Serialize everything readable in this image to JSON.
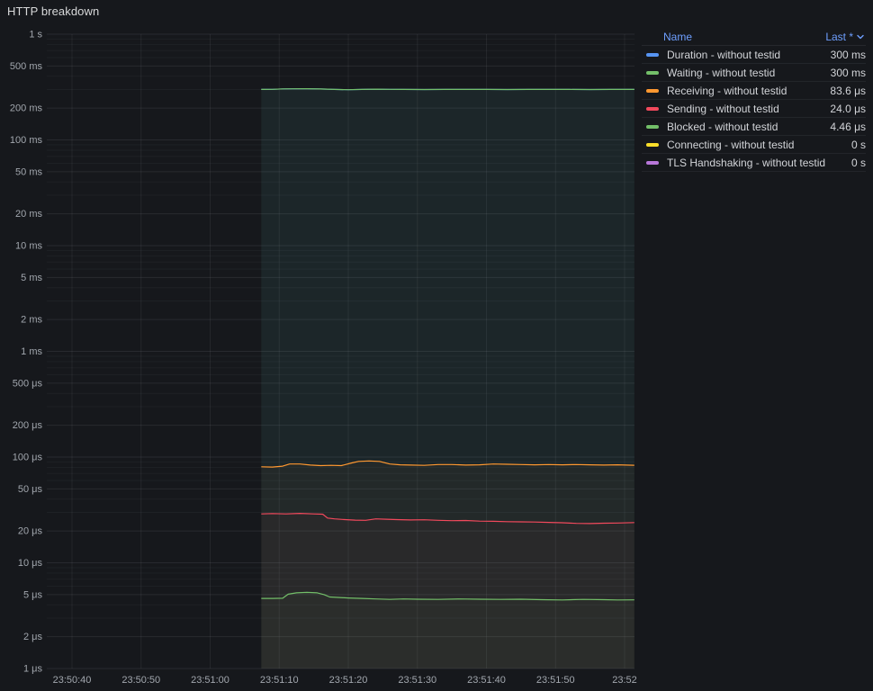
{
  "panel": {
    "title": "HTTP breakdown"
  },
  "legend": {
    "name_header": "Name",
    "last_header": "Last *",
    "sort_icon": "chevron-down",
    "rows": [
      {
        "name": "Duration - without testid",
        "last": "300 ms",
        "color": "#5794F2"
      },
      {
        "name": "Waiting - without testid",
        "last": "300 ms",
        "color": "#73BF69"
      },
      {
        "name": "Receiving - without testid",
        "last": "83.6 μs",
        "color": "#FF9830"
      },
      {
        "name": "Sending - without testid",
        "last": "24.0 μs",
        "color": "#F2495C"
      },
      {
        "name": "Blocked - without testid",
        "last": "4.46 μs",
        "color": "#73BF69"
      },
      {
        "name": "Connecting - without testid",
        "last": "0 s",
        "color": "#FADE2A"
      },
      {
        "name": "TLS Handshaking - without testid",
        "last": "0 s",
        "color": "#B877D9"
      }
    ]
  },
  "chart_data": {
    "type": "line",
    "title": "HTTP breakdown",
    "xlabel": "",
    "ylabel": "",
    "y_scale": "log",
    "y_unit": "time (1 μs – 1 s)",
    "y_range_us": [
      1,
      1000000
    ],
    "x_range_seconds_after_23_50_00": [
      36.35,
      121.43
    ],
    "grid": true,
    "legend_position": "right-table",
    "y_ticks": [
      {
        "label": "1 s",
        "us": 1000000
      },
      {
        "label": "500 ms",
        "us": 500000
      },
      {
        "label": "200 ms",
        "us": 200000
      },
      {
        "label": "100 ms",
        "us": 100000
      },
      {
        "label": "50 ms",
        "us": 50000
      },
      {
        "label": "20 ms",
        "us": 20000
      },
      {
        "label": "10 ms",
        "us": 10000
      },
      {
        "label": "5 ms",
        "us": 5000
      },
      {
        "label": "2 ms",
        "us": 2000
      },
      {
        "label": "1 ms",
        "us": 1000
      },
      {
        "label": "500 μs",
        "us": 500
      },
      {
        "label": "200 μs",
        "us": 200
      },
      {
        "label": "100 μs",
        "us": 100
      },
      {
        "label": "50 μs",
        "us": 50
      },
      {
        "label": "20 μs",
        "us": 20
      },
      {
        "label": "10 μs",
        "us": 10
      },
      {
        "label": "5 μs",
        "us": 5
      },
      {
        "label": "2 μs",
        "us": 2
      },
      {
        "label": "1 μs",
        "us": 1
      }
    ],
    "x_ticks": [
      {
        "label": "23:50:40",
        "t": 40
      },
      {
        "label": "23:50:50",
        "t": 50
      },
      {
        "label": "23:51:00",
        "t": 60
      },
      {
        "label": "23:51:10",
        "t": 70
      },
      {
        "label": "23:51:20",
        "t": 80
      },
      {
        "label": "23:51:30",
        "t": 90
      },
      {
        "label": "23:51:40",
        "t": 100
      },
      {
        "label": "23:51:50",
        "t": 110
      },
      {
        "label": "23:52",
        "t": 120
      }
    ],
    "series": [
      {
        "name": "Duration - without testid",
        "color": "#5794F2",
        "fill_opacity": 0.05,
        "last_label": "300 ms",
        "points": [
          [
            67.4,
            300000
          ],
          [
            69,
            301000
          ],
          [
            70.5,
            303500
          ],
          [
            72,
            304500
          ],
          [
            74,
            305000
          ],
          [
            76,
            303000
          ],
          [
            78,
            300000
          ],
          [
            80,
            298500
          ],
          [
            82,
            300000
          ],
          [
            84,
            302000
          ],
          [
            86,
            301000
          ],
          [
            88,
            300000
          ],
          [
            91,
            299500
          ],
          [
            94,
            300000
          ],
          [
            97,
            300500
          ],
          [
            100,
            300000
          ],
          [
            103,
            299500
          ],
          [
            106,
            300000
          ],
          [
            109,
            300500
          ],
          [
            112,
            300000
          ],
          [
            115,
            299800
          ],
          [
            118,
            300200
          ],
          [
            121.4,
            300000
          ]
        ]
      },
      {
        "name": "Waiting - without testid",
        "color": "#73BF69",
        "fill_opacity": 0.055,
        "last_label": "300 ms",
        "points": [
          [
            67.4,
            300000
          ],
          [
            69,
            301000
          ],
          [
            70.5,
            303500
          ],
          [
            72,
            304500
          ],
          [
            74,
            305000
          ],
          [
            76,
            303000
          ],
          [
            78,
            300000
          ],
          [
            80,
            298500
          ],
          [
            82,
            300000
          ],
          [
            84,
            302000
          ],
          [
            86,
            301000
          ],
          [
            88,
            300000
          ],
          [
            91,
            299500
          ],
          [
            94,
            300000
          ],
          [
            97,
            300500
          ],
          [
            100,
            300000
          ],
          [
            103,
            299500
          ],
          [
            106,
            300000
          ],
          [
            109,
            300500
          ],
          [
            112,
            300000
          ],
          [
            115,
            299800
          ],
          [
            118,
            300200
          ],
          [
            121.4,
            300000
          ]
        ]
      },
      {
        "name": "Receiving - without testid",
        "color": "#FF9830",
        "fill_opacity": 0.03,
        "last_label": "83.6 μs",
        "points": [
          [
            67.4,
            81
          ],
          [
            69,
            80.5
          ],
          [
            70.5,
            82
          ],
          [
            71.5,
            86
          ],
          [
            73,
            86
          ],
          [
            74.5,
            84
          ],
          [
            76,
            83
          ],
          [
            77.5,
            83.5
          ],
          [
            79,
            83
          ],
          [
            80.5,
            88
          ],
          [
            81.5,
            91
          ],
          [
            83,
            92
          ],
          [
            84.5,
            91
          ],
          [
            86,
            86
          ],
          [
            87.5,
            84.5
          ],
          [
            89,
            84
          ],
          [
            91,
            83.5
          ],
          [
            93,
            85
          ],
          [
            95,
            85
          ],
          [
            97,
            84
          ],
          [
            99,
            84.5
          ],
          [
            101,
            86
          ],
          [
            103,
            85.5
          ],
          [
            105,
            85
          ],
          [
            107,
            84.5
          ],
          [
            109,
            85
          ],
          [
            111,
            84.5
          ],
          [
            113,
            85
          ],
          [
            115,
            84.5
          ],
          [
            117,
            84
          ],
          [
            119,
            84.5
          ],
          [
            121.4,
            83.6
          ]
        ]
      },
      {
        "name": "Sending - without testid",
        "color": "#F2495C",
        "fill_opacity": 0.03,
        "last_label": "24.0 μs",
        "points": [
          [
            67.4,
            29
          ],
          [
            69,
            29.2
          ],
          [
            71,
            29
          ],
          [
            73,
            29.3
          ],
          [
            75,
            29
          ],
          [
            76.3,
            28.8
          ],
          [
            77,
            26.5
          ],
          [
            78,
            26
          ],
          [
            79.5,
            25.6
          ],
          [
            81,
            25.3
          ],
          [
            82.5,
            25.2
          ],
          [
            84,
            26
          ],
          [
            85.5,
            25.8
          ],
          [
            87,
            25.6
          ],
          [
            89,
            25.4
          ],
          [
            91,
            25.5
          ],
          [
            93,
            25.2
          ],
          [
            95,
            25
          ],
          [
            97,
            25.1
          ],
          [
            99,
            24.8
          ],
          [
            101,
            24.7
          ],
          [
            103,
            24.5
          ],
          [
            105,
            24.4
          ],
          [
            107,
            24.3
          ],
          [
            109,
            24.1
          ],
          [
            111,
            23.9
          ],
          [
            113,
            23.6
          ],
          [
            115,
            23.5
          ],
          [
            117,
            23.7
          ],
          [
            119,
            23.8
          ],
          [
            121.4,
            24
          ]
        ]
      },
      {
        "name": "Blocked - without testid",
        "color": "#73BF69",
        "fill_opacity": 0.03,
        "last_label": "4.46 μs",
        "points": [
          [
            67.4,
            4.6
          ],
          [
            69,
            4.6
          ],
          [
            70.5,
            4.62
          ],
          [
            71.3,
            5.05
          ],
          [
            72.5,
            5.2
          ],
          [
            74,
            5.25
          ],
          [
            75.5,
            5.2
          ],
          [
            76.5,
            5.0
          ],
          [
            77.3,
            4.75
          ],
          [
            78.5,
            4.7
          ],
          [
            80,
            4.65
          ],
          [
            82,
            4.6
          ],
          [
            84,
            4.55
          ],
          [
            86,
            4.5
          ],
          [
            88,
            4.55
          ],
          [
            90,
            4.52
          ],
          [
            93,
            4.5
          ],
          [
            96,
            4.55
          ],
          [
            99,
            4.52
          ],
          [
            102,
            4.5
          ],
          [
            105,
            4.52
          ],
          [
            108,
            4.48
          ],
          [
            111,
            4.45
          ],
          [
            114,
            4.5
          ],
          [
            117,
            4.48
          ],
          [
            119,
            4.45
          ],
          [
            121.4,
            4.46
          ]
        ]
      },
      {
        "name": "Connecting - without testid",
        "color": "#FADE2A",
        "fill_opacity": 0,
        "last_label": "0 s",
        "points": []
      },
      {
        "name": "TLS Handshaking - without testid",
        "color": "#B877D9",
        "fill_opacity": 0,
        "last_label": "0 s",
        "points": []
      }
    ]
  },
  "colors": {
    "background": "#16181c",
    "grid_major": "rgba(204,210,220,0.10)",
    "grid_minor": "rgba(204,210,220,0.05)",
    "grid_vertical": "rgba(204,210,220,0.08)",
    "axis_text": "#a2a7ae",
    "title_text": "#d8d9da",
    "legend_text": "#d2d4d8",
    "legend_header": "#6e9fff"
  }
}
